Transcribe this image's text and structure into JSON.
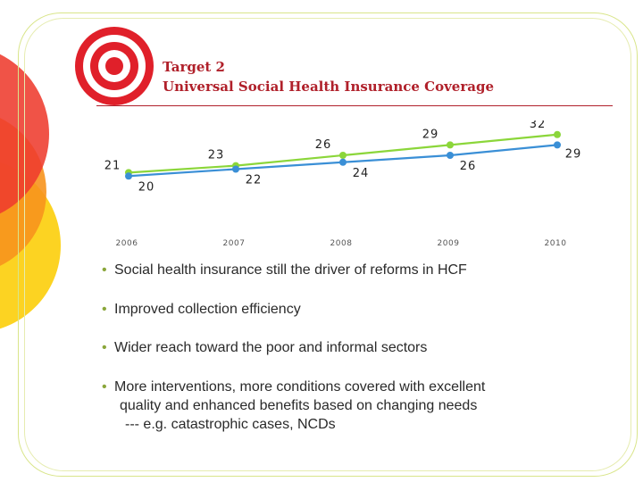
{
  "title": {
    "line1": "Target 2",
    "line2": "Universal Social Health Insurance Coverage"
  },
  "chart_data": {
    "type": "line",
    "categories": [
      "2006",
      "2007",
      "2008",
      "2009",
      "2010"
    ],
    "series": [
      {
        "values": [
          21,
          23,
          26,
          29,
          32
        ],
        "color": "#8bd63a"
      },
      {
        "values": [
          20,
          22,
          24,
          26,
          29
        ],
        "color": "#3a8fd6"
      }
    ],
    "ylim": [
      18,
      34
    ],
    "grid": false
  },
  "bullets": [
    {
      "dot": "•",
      "text": "Social health insurance still the driver of reforms in HCF"
    },
    {
      "dot": "•",
      "text": "Improved collection efficiency"
    },
    {
      "dot": "•",
      "text": "Wider reach toward the poor and informal sectors"
    },
    {
      "dot": "•",
      "text": "More interventions, more conditions covered with excellent",
      "continuation": [
        "quality and enhanced benefits based on changing needs",
        "--- e.g.  catastrophic cases, NCDs"
      ]
    }
  ],
  "colors": {
    "accent": "#b0202a",
    "frame": "#d9e58a",
    "circle_red": "#ee3b2e",
    "circle_orange": "#f7941d",
    "circle_yellow": "#fcd116"
  },
  "icons": {
    "target": "bullseye-icon"
  }
}
